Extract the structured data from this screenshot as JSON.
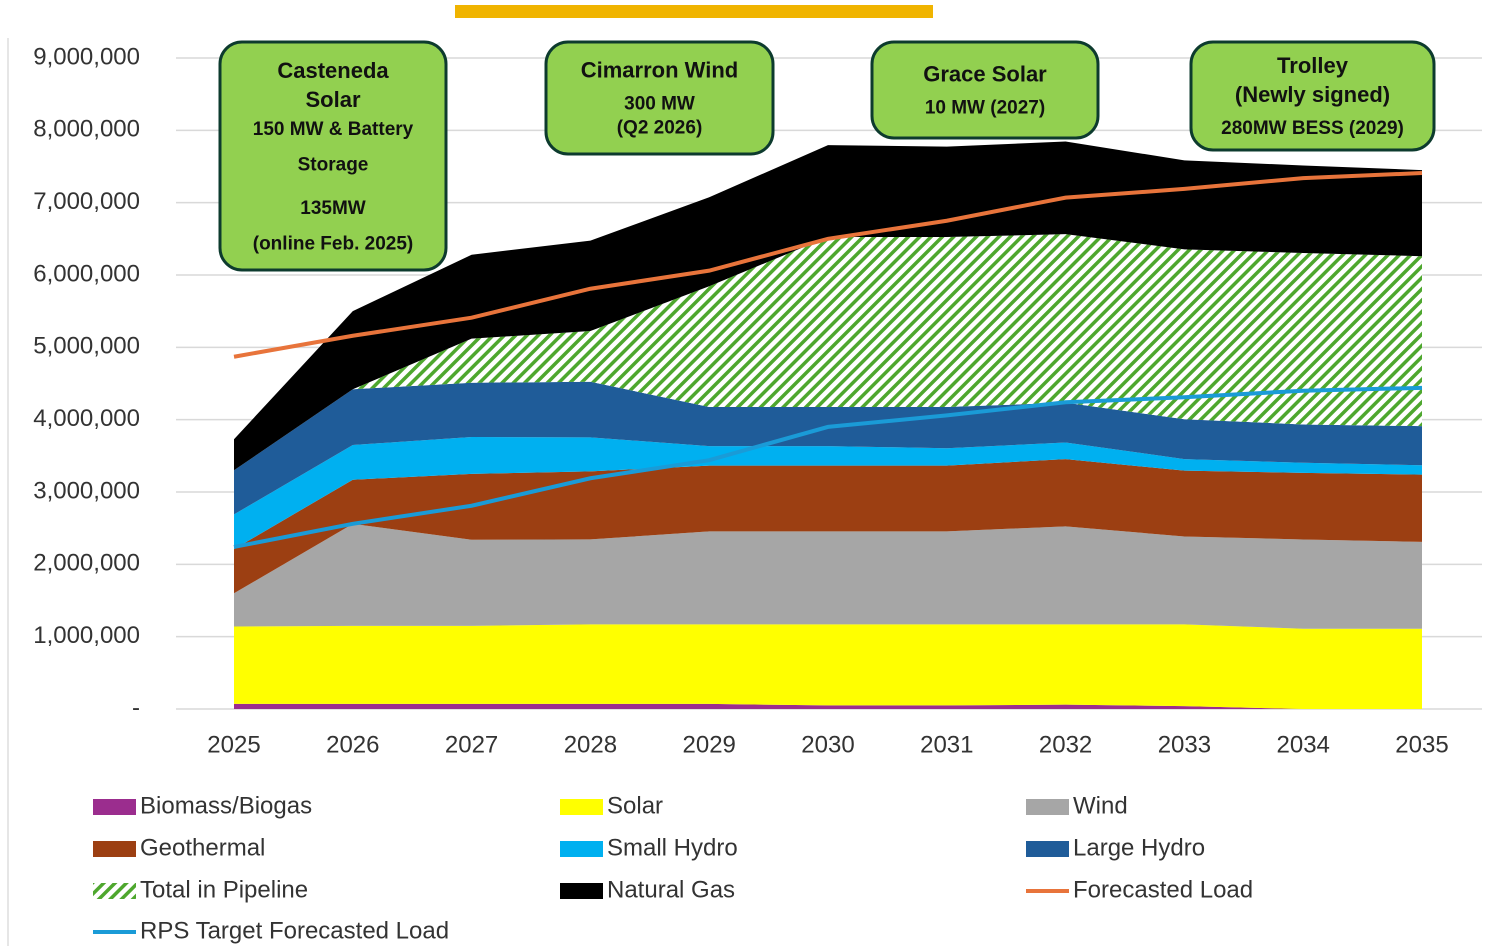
{
  "chart_data": {
    "type": "stacked_area",
    "categories": [
      "2025",
      "2026",
      "2027",
      "2028",
      "2029",
      "2030",
      "2031",
      "2032",
      "2033",
      "2034",
      "2035"
    ],
    "ylim": [
      0,
      9000000
    ],
    "yticks": [
      {
        "value": 0,
        "label": "-"
      },
      {
        "value": 1000000,
        "label": "1,000,000"
      },
      {
        "value": 2000000,
        "label": "2,000,000"
      },
      {
        "value": 3000000,
        "label": "3,000,000"
      },
      {
        "value": 4000000,
        "label": "4,000,000"
      },
      {
        "value": 5000000,
        "label": "5,000,000"
      },
      {
        "value": 6000000,
        "label": "6,000,000"
      },
      {
        "value": 7000000,
        "label": "7,000,000"
      },
      {
        "value": 8000000,
        "label": "8,000,000"
      },
      {
        "value": 9000000,
        "label": "9,000,000"
      }
    ],
    "grid": true,
    "series": [
      {
        "name": "Biomass/Biogas",
        "color": "#9b2d8e",
        "values": [
          70000,
          70000,
          70000,
          70000,
          70000,
          50000,
          50000,
          60000,
          40000,
          0,
          0
        ]
      },
      {
        "name": "Solar",
        "color": "#ffff00",
        "values": [
          1070000,
          1080000,
          1080000,
          1100000,
          1100000,
          1120000,
          1120000,
          1110000,
          1130000,
          1110000,
          1110000
        ]
      },
      {
        "name": "Wind",
        "color": "#a6a6a6",
        "values": [
          460000,
          1410000,
          1190000,
          1175000,
          1285000,
          1285000,
          1285000,
          1355000,
          1215000,
          1234000,
          1200000
        ]
      },
      {
        "name": "Geothermal",
        "color": "#9c3f12",
        "values": [
          610000,
          610000,
          910000,
          940000,
          910000,
          910000,
          910000,
          930000,
          910000,
          920000,
          930000
        ]
      },
      {
        "name": "Small Hydro",
        "color": "#00b0f0",
        "values": [
          480000,
          480000,
          510000,
          470000,
          270000,
          270000,
          240000,
          230000,
          160000,
          140000,
          130000
        ]
      },
      {
        "name": "Large Hydro",
        "color": "#1f5c99",
        "values": [
          610000,
          770000,
          750000,
          770000,
          540000,
          540000,
          570000,
          550000,
          550000,
          530000,
          540000
        ]
      },
      {
        "name": "Total in Pipeline",
        "color": "#4ea72e",
        "hatch": true,
        "values": [
          0,
          0,
          610000,
          700000,
          1670000,
          2350000,
          2350000,
          2330000,
          2350000,
          2370000,
          2350000
        ]
      },
      {
        "name": "Natural Gas",
        "color": "#000000",
        "values": [
          430000,
          1080000,
          1160000,
          1250000,
          1230000,
          1270000,
          1250000,
          1280000,
          1230000,
          1210000,
          1190000
        ]
      }
    ],
    "line_series": [
      {
        "name": "Forecasted Load",
        "color": "#e8743b",
        "values": [
          4870000,
          5160000,
          5410000,
          5810000,
          6060000,
          6500000,
          6750000,
          7070000,
          7190000,
          7340000,
          7410000
        ]
      },
      {
        "name": "RPS Target Forecasted Load",
        "color": "#1a9bd7",
        "values": [
          2240000,
          2560000,
          2810000,
          3190000,
          3440000,
          3900000,
          4060000,
          4240000,
          4310000,
          4400000,
          4440000
        ]
      }
    ],
    "annotations": [
      {
        "title": [
          "Casteneda",
          "Solar"
        ],
        "lines": [
          "150 MW & Battery",
          "Storage",
          "135MW",
          "(online Feb. 2025)"
        ]
      },
      {
        "title": [
          "Cimarron Wind"
        ],
        "lines": [
          "300 MW",
          "(Q2 2026)"
        ]
      },
      {
        "title": [
          "Grace Solar"
        ],
        "lines": [
          "10 MW (2027)"
        ]
      },
      {
        "title": [
          "Trolley",
          "(Newly signed)"
        ],
        "lines": [
          "280MW BESS (2029)"
        ]
      }
    ]
  }
}
